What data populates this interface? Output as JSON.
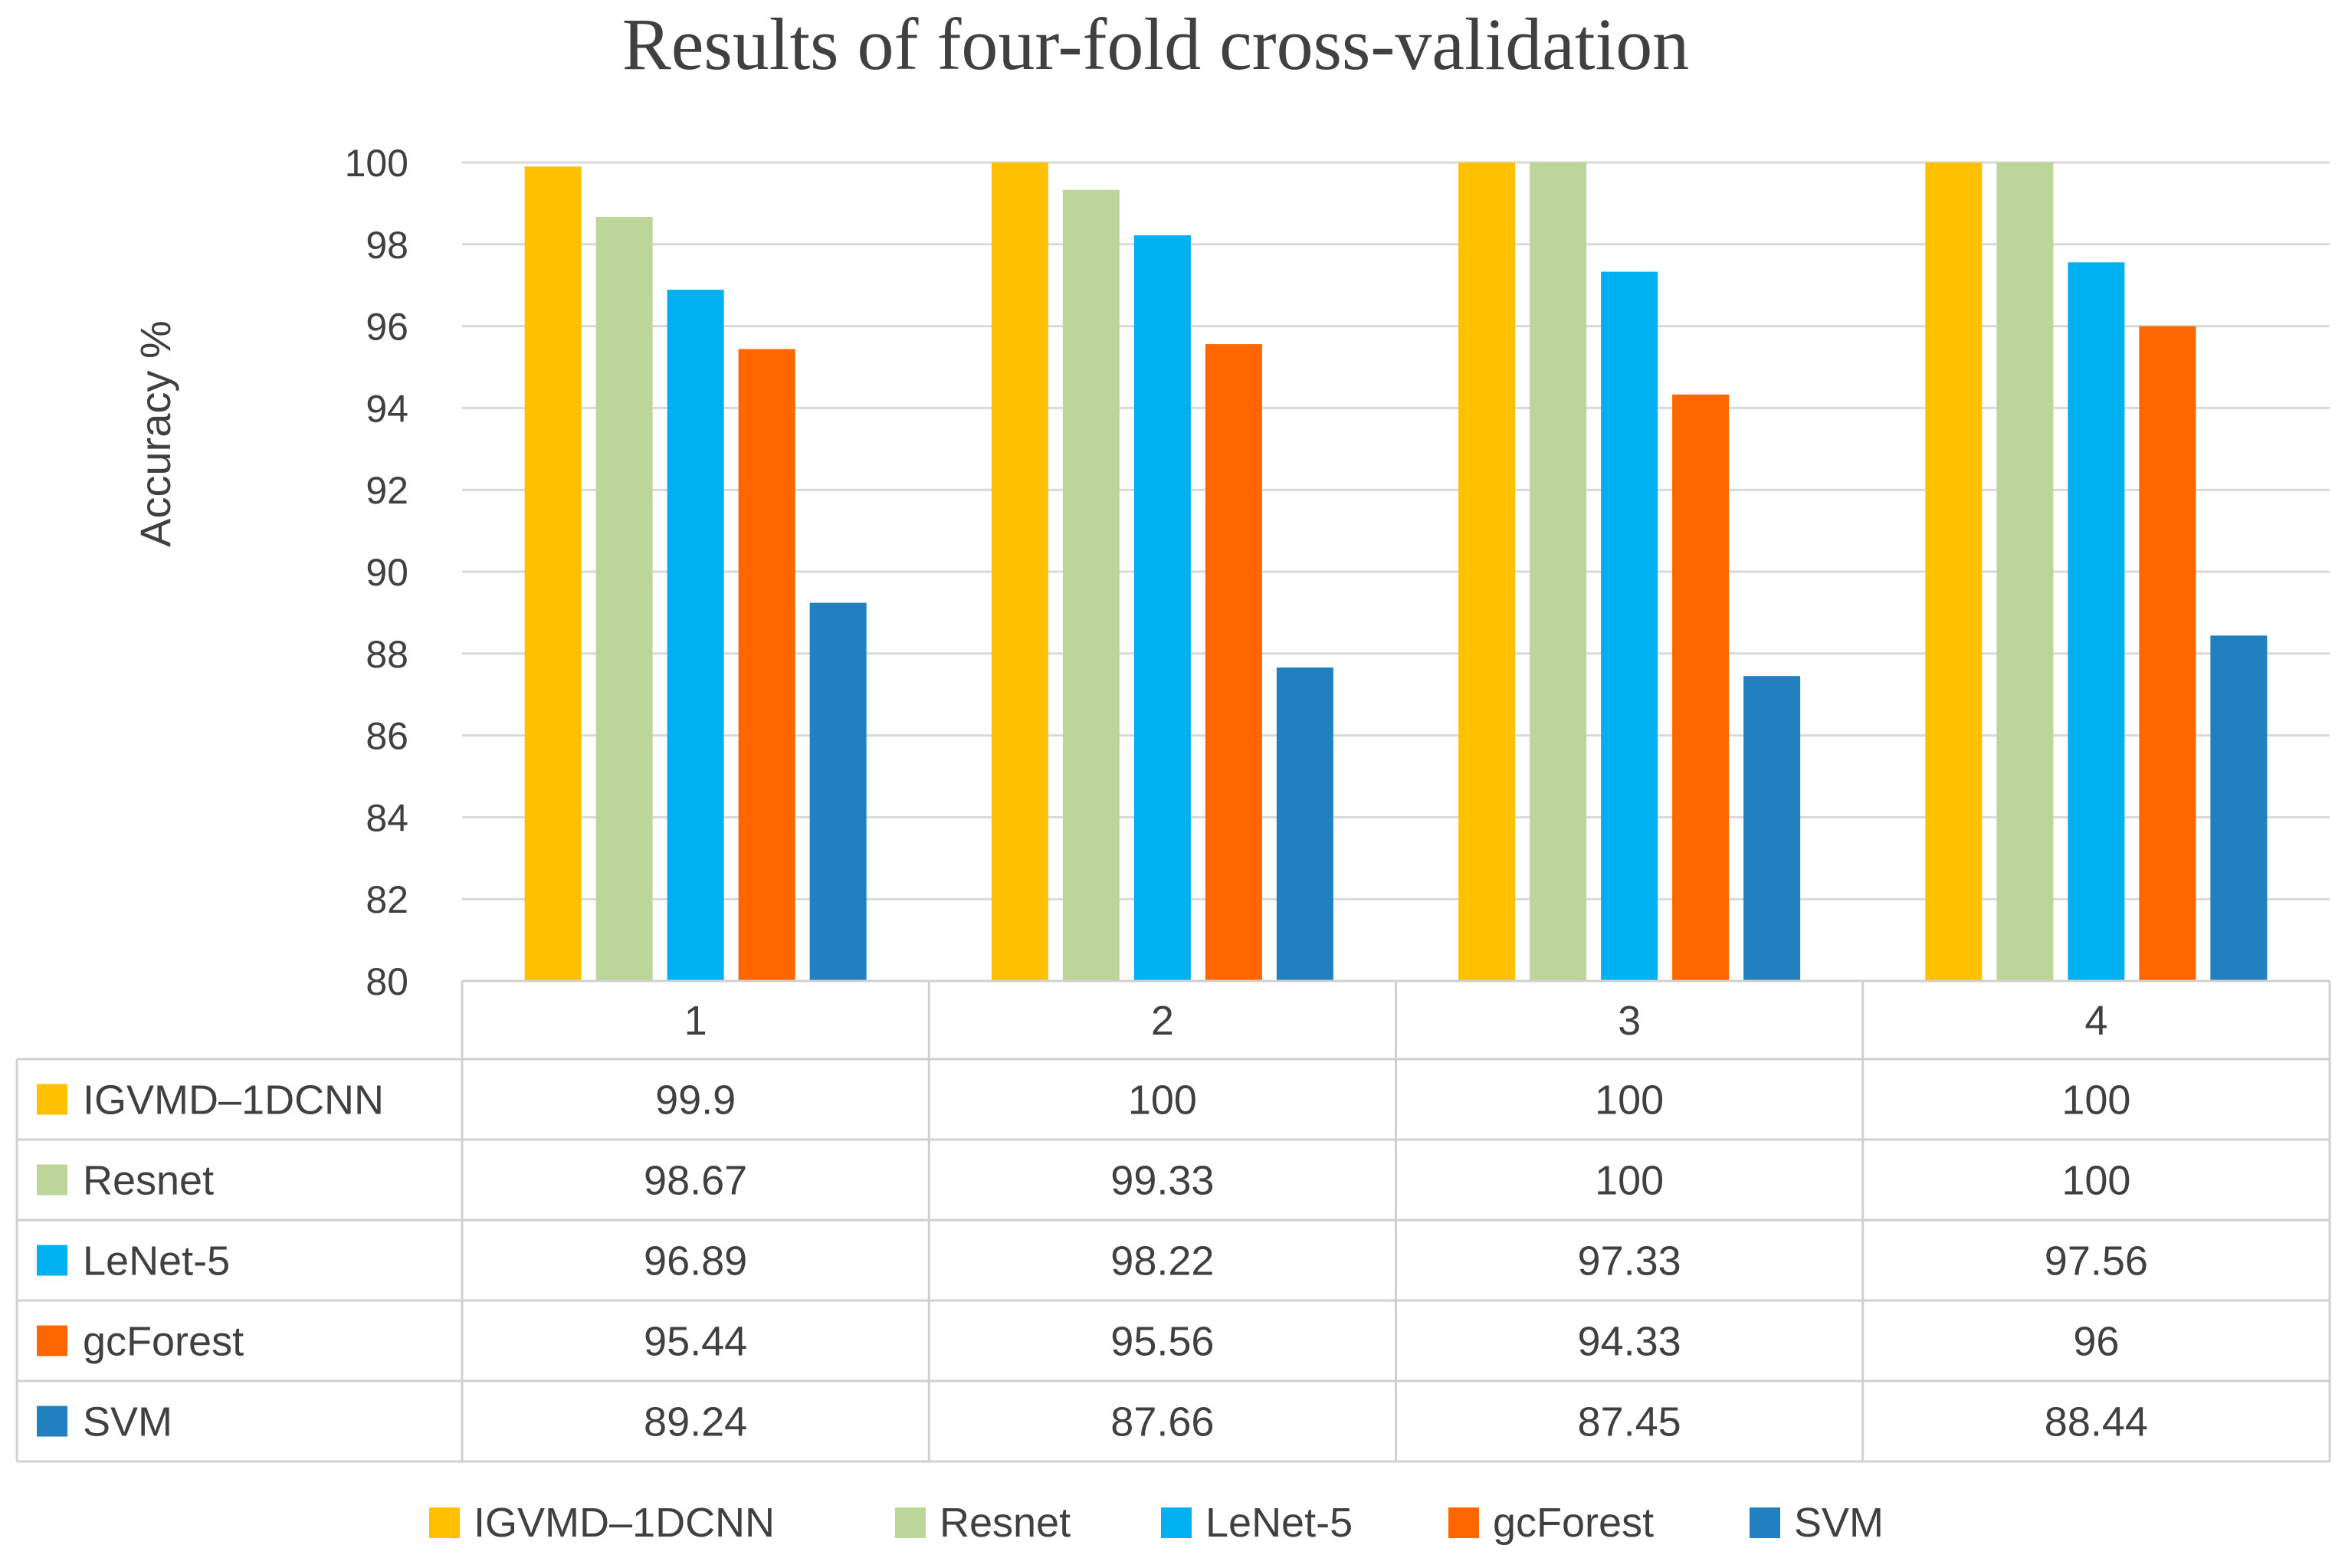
{
  "chart_data": {
    "type": "bar",
    "title": "Results of four-fold cross-validation",
    "ylabel": "Accuracy %",
    "xlabel": "",
    "ylim": [
      80,
      100
    ],
    "yticks": [
      "80",
      "82",
      "84",
      "86",
      "88",
      "90",
      "92",
      "94",
      "96",
      "98",
      "100"
    ],
    "categories": [
      "1",
      "2",
      "3",
      "4"
    ],
    "grid": true,
    "legend_position": "bottom",
    "data_table": true,
    "series": [
      {
        "name": "IGVMD–1DCNN",
        "color": "#FFC000",
        "values": [
          99.9,
          100,
          100,
          100
        ],
        "labels": [
          "99.9",
          "100",
          "100",
          "100"
        ]
      },
      {
        "name": "Resnet",
        "color": "#BCD69A",
        "values": [
          98.67,
          99.33,
          100,
          100
        ],
        "labels": [
          "98.67",
          "99.33",
          "100",
          "100"
        ]
      },
      {
        "name": "LeNet-5",
        "color": "#00B0F0",
        "values": [
          96.89,
          98.22,
          97.33,
          97.56
        ],
        "labels": [
          "96.89",
          "98.22",
          "97.33",
          "97.56"
        ]
      },
      {
        "name": "gcForest",
        "color": "#FF6600",
        "values": [
          95.44,
          95.56,
          94.33,
          96
        ],
        "labels": [
          "95.44",
          "95.56",
          "94.33",
          "96"
        ]
      },
      {
        "name": "SVM",
        "color": "#2180BF",
        "values": [
          89.24,
          87.66,
          87.45,
          88.44
        ],
        "labels": [
          "89.24",
          "87.66",
          "87.45",
          "88.44"
        ]
      }
    ]
  }
}
